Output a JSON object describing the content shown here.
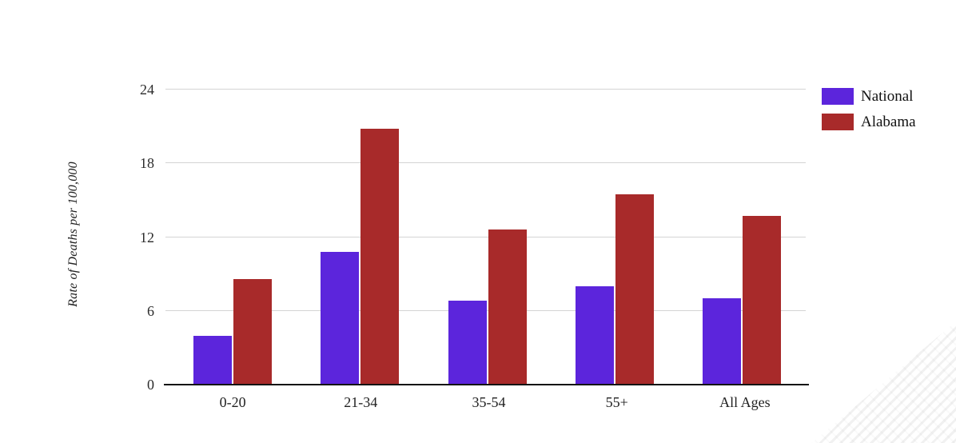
{
  "chart_data": {
    "type": "bar",
    "title": "",
    "ylabel": "Rate of Deaths per 100,000",
    "xlabel": "",
    "categories": [
      "0-20",
      "21-34",
      "35-54",
      "55+",
      "All Ages"
    ],
    "series": [
      {
        "name": "National",
        "color": "#5c25dc",
        "values": [
          4.0,
          10.8,
          6.8,
          8.0,
          7.0
        ]
      },
      {
        "name": "Alabama",
        "color": "#a82a2a",
        "values": [
          8.6,
          20.8,
          12.6,
          15.5,
          13.7
        ]
      }
    ],
    "yticks": [
      0,
      6,
      12,
      18,
      24
    ],
    "ylim": [
      0,
      24
    ],
    "grid": true,
    "legend_position": "top-right"
  },
  "colors": {
    "background": "#ffffff",
    "gridline": "#d4d4d4",
    "axis_line": "#141414",
    "tick_text": "#2b2b2b",
    "national": "#5c25dc",
    "alabama": "#a82a2a"
  }
}
